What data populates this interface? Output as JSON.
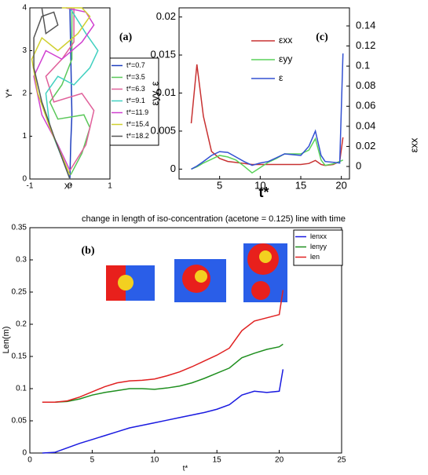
{
  "chart_data": [
    {
      "type": "line",
      "xlabel": "X*",
      "ylabel": "Y*",
      "annotation": "(a)",
      "xlim": [
        -1,
        1
      ],
      "xticks": [
        -1,
        0,
        1
      ],
      "ylim": [
        0,
        4
      ],
      "yticks": [
        0,
        1,
        2,
        3,
        4
      ],
      "series": [
        {
          "name": "t*=0.7",
          "color": "#1f3fbf",
          "x": [
            0,
            0.02,
            0.05,
            0.03,
            0
          ],
          "values": [
            0,
            0.8,
            1.5,
            2.5,
            4
          ]
        },
        {
          "name": "t*=3.5",
          "color": "#5ac85a",
          "x": [
            0.02,
            0.3,
            0.5,
            0.35,
            -0.3,
            -0.5,
            -0.2,
            0.05,
            0.05
          ],
          "values": [
            0.1,
            0.6,
            1.2,
            1.5,
            1.4,
            1.8,
            2.2,
            2.8,
            4
          ]
        },
        {
          "name": "t*=6.3",
          "color": "#e0609a",
          "x": [
            0,
            0.4,
            0.6,
            0.3,
            -0.4,
            -0.6,
            -0.2,
            0.1,
            0.1
          ],
          "values": [
            0.2,
            0.8,
            1.6,
            2.0,
            1.8,
            2.4,
            2.8,
            3.2,
            4
          ]
        },
        {
          "name": "t*=9.1",
          "color": "#40d0c0",
          "x": [
            0,
            -0.2,
            -0.5,
            -0.6,
            -0.3,
            0.1,
            0.5,
            0.7,
            0.4,
            0
          ],
          "values": [
            0,
            0.5,
            1.2,
            2.0,
            2.4,
            2.2,
            2.6,
            3.0,
            3.4,
            4
          ]
        },
        {
          "name": "t*=11.9",
          "color": "#d040d0",
          "x": [
            0,
            -0.3,
            -0.7,
            -0.9,
            -0.6,
            -0.2,
            0.3,
            0.6,
            0.4,
            -0.1
          ],
          "values": [
            0.2,
            0.8,
            1.5,
            2.4,
            3.0,
            2.8,
            3.2,
            3.6,
            3.9,
            4
          ]
        },
        {
          "name": "t*=15.4",
          "color": "#d0d030",
          "x": [
            0,
            -0.5,
            -0.8,
            -0.95,
            -0.7,
            -0.3,
            0.2,
            0.5,
            0.3,
            -0.2
          ],
          "values": [
            0.1,
            1.2,
            2.0,
            2.8,
            3.3,
            3.0,
            3.4,
            3.8,
            4,
            4
          ]
        },
        {
          "name": "t*=18.2",
          "color": "#555555",
          "x": [
            0,
            -0.4,
            -0.7,
            -0.9,
            -0.9,
            -0.7,
            -0.4,
            -0.3,
            -0.6,
            -0.7,
            -0.4
          ],
          "values": [
            0,
            1.0,
            1.8,
            2.6,
            3.3,
            3.8,
            3.9,
            3.6,
            3.4,
            4.0,
            4
          ]
        }
      ]
    },
    {
      "type": "line",
      "xlabel": "t*",
      "ylabel": "εyy, ε",
      "y2label": "εxx",
      "annotation": "(c)",
      "xlim": [
        0,
        21
      ],
      "xticks": [
        5,
        10,
        15,
        20
      ],
      "ylim": [
        -0.0013,
        0.0212
      ],
      "yticks": [
        0,
        0.005,
        0.01,
        0.015,
        0.02
      ],
      "y2lim": [
        -0.0125,
        0.158
      ],
      "y2ticks": [
        0,
        0.02,
        0.04,
        0.06,
        0.08,
        0.1,
        0.12,
        0.14
      ],
      "x": [
        1.5,
        2.2,
        3,
        4,
        5,
        6,
        7,
        8,
        9,
        10,
        11,
        12,
        13,
        14,
        15,
        16,
        16.8,
        17.5,
        18,
        19,
        19.8,
        20.2
      ],
      "series": [
        {
          "name": "εxx",
          "color": "#c83232",
          "axis": "y2",
          "values": [
            0.043,
            0.1016,
            0.05,
            0.015,
            0.008,
            0.005,
            0.004,
            0.003,
            0.002,
            0.002,
            0.002,
            0.002,
            0.002,
            0.002,
            0.002,
            0.003,
            0.006,
            0.002,
            0.001,
            0.002,
            0.005,
            0.029
          ]
        },
        {
          "name": "εyy",
          "color": "#5ad25a",
          "values": [
            0,
            0.0003,
            0.0008,
            0.0013,
            0.0018,
            0.0016,
            0.0012,
            0.0004,
            -0.0005,
            0.0002,
            0.0009,
            0.0014,
            0.002,
            0.002,
            0.002,
            0.0025,
            0.004,
            0.0012,
            0.0005,
            0.0007,
            0.001,
            0.0012
          ]
        },
        {
          "name": "ε",
          "color": "#3250d2",
          "values": [
            0,
            0.0004,
            0.001,
            0.0018,
            0.0023,
            0.0022,
            0.0016,
            0.001,
            0.0005,
            0.0008,
            0.001,
            0.0015,
            0.002,
            0.0019,
            0.0018,
            0.003,
            0.005,
            0.0018,
            0.001,
            0.0009,
            0.0008,
            0.0152
          ]
        }
      ]
    },
    {
      "type": "line",
      "title": "change in length of iso-concentration (acetone = 0.125) line with time",
      "xlabel": "t*",
      "ylabel": "Len(m)",
      "annotation": "(b)",
      "xlim": [
        0,
        25
      ],
      "xticks": [
        0,
        5,
        10,
        15,
        20,
        25
      ],
      "ylim": [
        0,
        0.35
      ],
      "yticks": [
        0,
        0.05,
        0.1,
        0.15,
        0.2,
        0.25,
        0.3,
        0.35
      ],
      "x": [
        1,
        2,
        3,
        4,
        5,
        6,
        7,
        8,
        9,
        10,
        11,
        12,
        13,
        14,
        15,
        16,
        17,
        18,
        19,
        20,
        20.3
      ],
      "series": [
        {
          "name": "lenxx",
          "color": "#1a1ae0",
          "values": [
            0,
            0.001,
            0.008,
            0.015,
            0.021,
            0.027,
            0.033,
            0.039,
            0.043,
            0.047,
            0.051,
            0.055,
            0.059,
            0.063,
            0.068,
            0.075,
            0.09,
            0.096,
            0.094,
            0.096,
            0.13
          ]
        },
        {
          "name": "lenyy",
          "color": "#1f8f1f",
          "values": [
            0.079,
            0.079,
            0.08,
            0.084,
            0.09,
            0.094,
            0.097,
            0.1,
            0.1,
            0.099,
            0.101,
            0.104,
            0.109,
            0.116,
            0.124,
            0.132,
            0.148,
            0.155,
            0.161,
            0.165,
            0.169
          ]
        },
        {
          "name": "len",
          "color": "#e02020",
          "values": [
            0.079,
            0.079,
            0.081,
            0.087,
            0.095,
            0.103,
            0.109,
            0.112,
            0.113,
            0.115,
            0.12,
            0.126,
            0.134,
            0.143,
            0.152,
            0.163,
            0.19,
            0.205,
            0.21,
            0.215,
            0.253
          ]
        }
      ]
    }
  ]
}
